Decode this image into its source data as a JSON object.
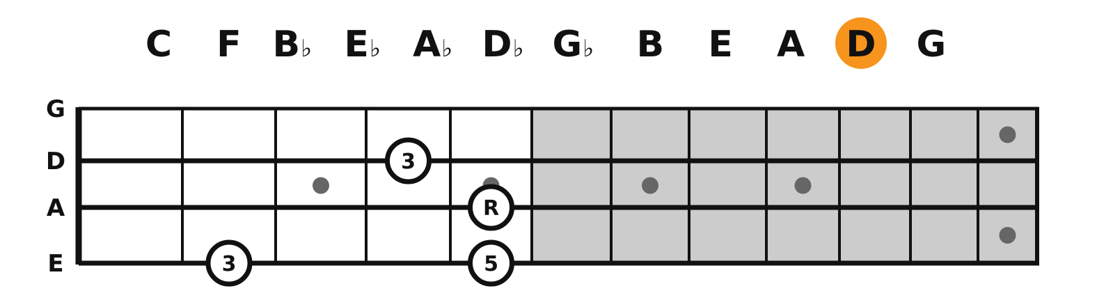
{
  "circle_of_fourths": {
    "notes": [
      "C",
      "F",
      "B♭",
      "E♭",
      "A♭",
      "D♭",
      "G♭",
      "B",
      "E",
      "A",
      "D",
      "G"
    ],
    "highlighted_note": "D",
    "highlight_color": "#F7941D"
  },
  "fretboard": {
    "strings": [
      "G",
      "D",
      "A",
      "E"
    ],
    "fret_count": 12,
    "shaded_from_fret": 6,
    "shade_color": "#CCCCCC",
    "line_color": "#111111",
    "inlay_color": "#666666",
    "inlays": [
      {
        "fret": 3,
        "between": [
          "D",
          "A"
        ]
      },
      {
        "fret": 5,
        "between": [
          "D",
          "A"
        ]
      },
      {
        "fret": 7,
        "between": [
          "D",
          "A"
        ]
      },
      {
        "fret": 9,
        "between": [
          "D",
          "A"
        ]
      },
      {
        "fret": 12,
        "between": [
          "G",
          "D"
        ]
      },
      {
        "fret": 12,
        "between": [
          "A",
          "E"
        ]
      }
    ],
    "markers": [
      {
        "label": "3",
        "string": "D",
        "fret": 4
      },
      {
        "label": "R",
        "string": "A",
        "fret": 5
      },
      {
        "label": "3",
        "string": "E",
        "fret": 2
      },
      {
        "label": "5",
        "string": "E",
        "fret": 5
      }
    ]
  }
}
